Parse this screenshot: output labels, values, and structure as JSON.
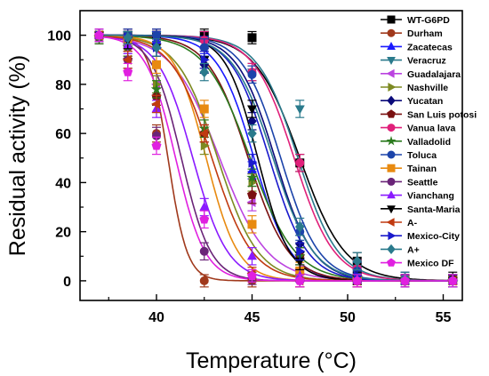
{
  "chart_data": {
    "type": "scatter",
    "xlabel": "Temperature (°C)",
    "ylabel": "Residual activity (%)",
    "xlim": [
      36,
      56
    ],
    "ylim": [
      -8,
      110
    ],
    "xticks": [
      40,
      45,
      50,
      55
    ],
    "yticks": [
      0,
      20,
      40,
      60,
      80,
      100
    ],
    "legend_placement": "right",
    "grid": false,
    "series": [
      {
        "name": "WT-G6PD",
        "color": "#000000",
        "marker": "square",
        "tm": 47.5,
        "k": 0.85,
        "x": [
          37,
          38.5,
          40,
          42.5,
          45,
          47.5,
          50.5,
          53,
          55.5
        ],
        "y": [
          100,
          100,
          100,
          100,
          99,
          48,
          8,
          1,
          1
        ]
      },
      {
        "name": "Durham",
        "color": "#a0391c",
        "marker": "circle",
        "tm": 40.6,
        "k": 2.0,
        "x": [
          37,
          38.5,
          40,
          42.5,
          45,
          47.5,
          50.5,
          53,
          55.5
        ],
        "y": [
          100,
          95,
          60,
          0,
          0,
          0,
          0,
          0,
          0
        ]
      },
      {
        "name": "Zacatecas",
        "color": "#1a1aff",
        "marker": "triangle-up",
        "tm": 45.1,
        "k": 1.05,
        "x": [
          37,
          38.5,
          40,
          42.5,
          45,
          47.5,
          50.5,
          53,
          55.5
        ],
        "y": [
          100,
          99,
          98,
          96,
          45,
          10,
          3,
          1,
          0
        ]
      },
      {
        "name": "Veracruz",
        "color": "#2a7a8c",
        "marker": "triangle-down",
        "tm": 47.4,
        "k": 0.95,
        "x": [
          37,
          38.5,
          40,
          42.5,
          45,
          47.5,
          50.5,
          53,
          55.5
        ],
        "y": [
          100,
          100,
          100,
          98,
          85,
          70,
          5,
          1,
          0
        ]
      },
      {
        "name": "Guadalajara",
        "color": "#bb44e0",
        "marker": "triangle-left",
        "tm": 43.3,
        "k": 0.8,
        "x": [
          37,
          38.5,
          40,
          42.5,
          45,
          47.5,
          50.5,
          53,
          55.5
        ],
        "y": [
          99,
          96,
          80,
          60,
          32,
          5,
          1,
          0,
          0
        ]
      },
      {
        "name": "Nashville",
        "color": "#7d8a22",
        "marker": "triangle-right",
        "tm": 43.2,
        "k": 0.95,
        "x": [
          37,
          38.5,
          40,
          42.5,
          45,
          47.5,
          50.5,
          53,
          55.5
        ],
        "y": [
          100,
          95,
          80,
          55,
          40,
          12,
          2,
          0,
          0
        ]
      },
      {
        "name": "Yucatan",
        "color": "#0a0a7a",
        "marker": "diamond",
        "tm": 46.2,
        "k": 1.0,
        "x": [
          37,
          38.5,
          40,
          42.5,
          45,
          47.5,
          50.5,
          53,
          55.5
        ],
        "y": [
          100,
          99,
          95,
          88,
          65,
          15,
          3,
          0,
          0
        ]
      },
      {
        "name": "San Luis potosi",
        "color": "#7a1010",
        "marker": "pentagon",
        "tm": 44.8,
        "k": 0.95,
        "x": [
          37,
          38.5,
          40,
          42.5,
          45,
          47.5,
          50.5,
          53,
          55.5
        ],
        "y": [
          99,
          90,
          75,
          60,
          35,
          10,
          2,
          0,
          0
        ]
      },
      {
        "name": "Vanua lava",
        "color": "#e0207a",
        "marker": "circle",
        "tm": 47.2,
        "k": 0.95,
        "x": [
          37,
          38.5,
          40,
          42.5,
          45,
          47.5,
          50.5,
          53,
          55.5
        ],
        "y": [
          100,
          100,
          100,
          98,
          85,
          48,
          5,
          1,
          0
        ]
      },
      {
        "name": "Valladolid",
        "color": "#2b7a1e",
        "marker": "star",
        "tm": 44.9,
        "k": 0.85,
        "x": [
          37,
          38.5,
          40,
          42.5,
          45,
          47.5,
          50.5,
          53,
          55.5
        ],
        "y": [
          99,
          95,
          78,
          62,
          42,
          10,
          1,
          0,
          0
        ]
      },
      {
        "name": "Toluca",
        "color": "#1c44aa",
        "marker": "circle-half",
        "tm": 46.5,
        "k": 1.0,
        "x": [
          37,
          38.5,
          40,
          42.5,
          45,
          47.5,
          50.5,
          53,
          55.5
        ],
        "y": [
          100,
          100,
          100,
          95,
          84,
          20,
          4,
          1,
          0
        ]
      },
      {
        "name": "Tainan",
        "color": "#e88a10",
        "marker": "square",
        "tm": 42.6,
        "k": 1.2,
        "x": [
          37,
          38.5,
          40,
          42.5,
          45,
          47.5,
          50.5,
          53,
          55.5
        ],
        "y": [
          100,
          98,
          88,
          70,
          23,
          4,
          0,
          0,
          0
        ]
      },
      {
        "name": "Seattle",
        "color": "#6a2478",
        "marker": "circle",
        "tm": 41.3,
        "k": 1.3,
        "x": [
          37,
          38.5,
          40,
          42.5,
          45,
          47.5,
          50.5,
          53,
          55.5
        ],
        "y": [
          100,
          90,
          59,
          12,
          1,
          0,
          0,
          0,
          0
        ]
      },
      {
        "name": "Vianchang",
        "color": "#8a1aff",
        "marker": "triangle-up",
        "tm": 41.9,
        "k": 1.1,
        "x": [
          37,
          38.5,
          40,
          42.5,
          45,
          47.5,
          50.5,
          53,
          55.5
        ],
        "y": [
          100,
          96,
          70,
          30,
          10,
          2,
          0,
          0,
          0
        ]
      },
      {
        "name": "Santa-Maria",
        "color": "#000000",
        "marker": "triangle-down",
        "tm": 45.3,
        "k": 1.2,
        "x": [
          37,
          38.5,
          40,
          42.5,
          45,
          47.5,
          50.5,
          53,
          55.5
        ],
        "y": [
          100,
          98,
          95,
          90,
          70,
          8,
          1,
          0,
          0
        ]
      },
      {
        "name": "A-",
        "color": "#c03a10",
        "marker": "triangle-left",
        "tm": 42.9,
        "k": 0.95,
        "x": [
          37,
          38.5,
          40,
          42.5,
          45,
          47.5,
          50.5,
          53,
          55.5
        ],
        "y": [
          100,
          90,
          72,
          60,
          3,
          0,
          0,
          0,
          0
        ]
      },
      {
        "name": "Mexico-City",
        "color": "#1a1acc",
        "marker": "triangle-right",
        "tm": 45.9,
        "k": 1.0,
        "x": [
          37,
          38.5,
          40,
          42.5,
          45,
          47.5,
          50.5,
          53,
          55.5
        ],
        "y": [
          100,
          99,
          95,
          90,
          48,
          12,
          2,
          0,
          0
        ]
      },
      {
        "name": "A+",
        "color": "#2a7a8c",
        "marker": "diamond",
        "tm": 46.1,
        "k": 0.95,
        "x": [
          37,
          38.5,
          40,
          42.5,
          45,
          47.5,
          50.5,
          53,
          55.5
        ],
        "y": [
          100,
          99,
          95,
          85,
          60,
          22,
          8,
          1,
          0
        ]
      },
      {
        "name": "Mexico DF",
        "color": "#e020e0",
        "marker": "pentagon",
        "tm": 41.0,
        "k": 1.3,
        "x": [
          37,
          38.5,
          40,
          42.5,
          45,
          47.5,
          50.5,
          53,
          55.5
        ],
        "y": [
          100,
          85,
          55,
          25,
          2,
          0,
          0,
          0,
          0
        ]
      }
    ]
  }
}
